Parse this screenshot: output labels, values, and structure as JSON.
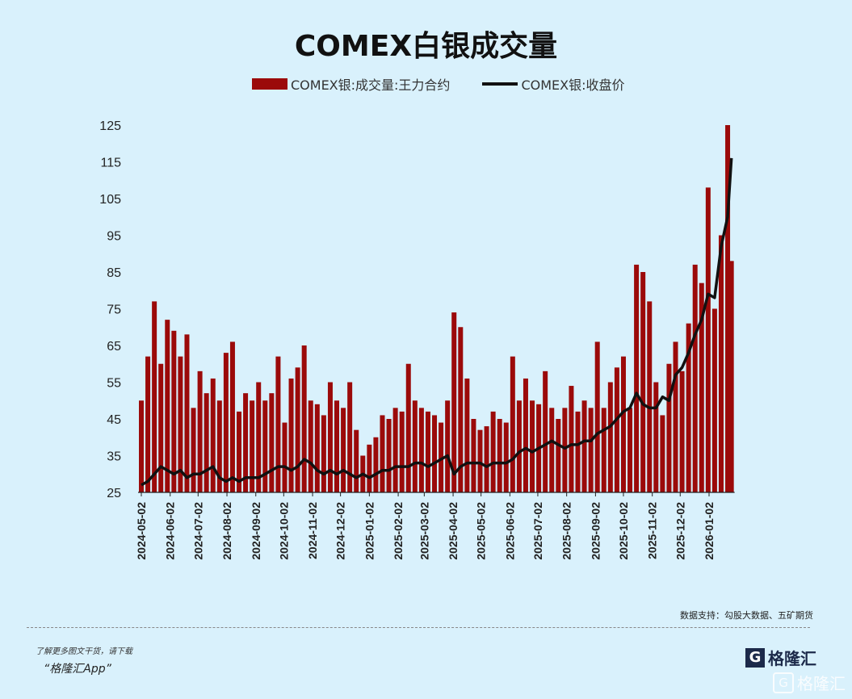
{
  "chart_data": {
    "type": "bar+line",
    "title": "COMEX白银成交量",
    "legend_placement": "top-center",
    "ylim": [
      25,
      125
    ],
    "yticks": [
      25,
      35,
      45,
      55,
      65,
      75,
      85,
      95,
      105,
      115,
      125
    ],
    "xticks": [
      "2024-05-02",
      "2024-06-02",
      "2024-07-02",
      "2024-08-02",
      "2024-09-02",
      "2024-10-02",
      "2024-11-02",
      "2024-12-02",
      "2025-01-02",
      "2025-02-02",
      "2025-03-02",
      "2025-04-02",
      "2025-05-02",
      "2025-06-02",
      "2025-07-02",
      "2025-08-02",
      "2025-09-02",
      "2025-10-02",
      "2025-11-02",
      "2025-12-02",
      "2026-01-02"
    ],
    "grid": false,
    "colors": {
      "bar": "#9b0a0a",
      "line": "#111111"
    },
    "dates": [
      "2024-05-02",
      "2024-05-09",
      "2024-05-16",
      "2024-05-23",
      "2024-05-30",
      "2024-06-06",
      "2024-06-13",
      "2024-06-20",
      "2024-06-27",
      "2024-07-04",
      "2024-07-11",
      "2024-07-18",
      "2024-07-25",
      "2024-08-01",
      "2024-08-08",
      "2024-08-15",
      "2024-08-22",
      "2024-08-29",
      "2024-09-05",
      "2024-09-12",
      "2024-09-19",
      "2024-09-26",
      "2024-10-03",
      "2024-10-10",
      "2024-10-17",
      "2024-10-24",
      "2024-10-31",
      "2024-11-07",
      "2024-11-14",
      "2024-11-21",
      "2024-11-28",
      "2024-12-05",
      "2024-12-12",
      "2024-12-19",
      "2024-12-26",
      "2025-01-02",
      "2025-01-09",
      "2025-01-16",
      "2025-01-23",
      "2025-01-30",
      "2025-02-06",
      "2025-02-13",
      "2025-02-20",
      "2025-02-27",
      "2025-03-06",
      "2025-03-13",
      "2025-03-20",
      "2025-03-27",
      "2025-04-03",
      "2025-04-10",
      "2025-04-17",
      "2025-04-24",
      "2025-05-01",
      "2025-05-08",
      "2025-05-15",
      "2025-05-22",
      "2025-05-29",
      "2025-06-05",
      "2025-06-12",
      "2025-06-19",
      "2025-06-26",
      "2025-07-03",
      "2025-07-10",
      "2025-07-17",
      "2025-07-24",
      "2025-07-31",
      "2025-08-07",
      "2025-08-14",
      "2025-08-21",
      "2025-08-28",
      "2025-09-04",
      "2025-09-11",
      "2025-09-18",
      "2025-09-25",
      "2025-10-02",
      "2025-10-09",
      "2025-10-16",
      "2025-10-23",
      "2025-10-30",
      "2025-11-06",
      "2025-11-13",
      "2025-11-20",
      "2025-11-27",
      "2025-12-04",
      "2025-12-11",
      "2025-12-18",
      "2025-12-25",
      "2026-01-01",
      "2026-01-08",
      "2026-01-15",
      "2026-01-22",
      "2026-01-26"
    ],
    "series": [
      {
        "name": "COMEX银:成交量:王力合约",
        "type": "bar",
        "values": [
          50,
          62,
          77,
          60,
          72,
          69,
          62,
          68,
          48,
          58,
          52,
          56,
          50,
          63,
          66,
          47,
          52,
          50,
          55,
          50,
          52,
          62,
          44,
          56,
          59,
          65,
          50,
          49,
          46,
          55,
          50,
          48,
          55,
          42,
          35,
          38,
          40,
          46,
          45,
          48,
          47,
          60,
          50,
          48,
          47,
          46,
          44,
          50,
          74,
          70,
          56,
          45,
          42,
          43,
          47,
          45,
          44,
          62,
          50,
          56,
          50,
          49,
          58,
          48,
          45,
          48,
          54,
          47,
          50,
          48,
          66,
          48,
          55,
          59,
          62,
          48,
          87,
          85,
          77,
          55,
          46,
          60,
          66,
          58,
          71,
          87,
          82,
          108,
          75,
          95,
          125,
          88
        ]
      },
      {
        "name": "COMEX银:收盘价",
        "type": "line",
        "values": [
          27,
          28,
          30,
          32,
          31,
          30,
          31,
          29,
          30,
          30,
          31,
          32,
          29,
          28,
          29,
          28,
          29,
          29,
          29,
          30,
          31,
          32,
          32,
          31,
          32,
          34,
          33,
          31,
          30,
          31,
          30,
          31,
          30,
          29,
          30,
          29,
          30,
          31,
          31,
          32,
          32,
          32,
          33,
          33,
          32,
          33,
          34,
          35,
          30,
          32,
          33,
          33,
          33,
          32,
          33,
          33,
          33,
          34,
          36,
          37,
          36,
          37,
          38,
          39,
          38,
          37,
          38,
          38,
          39,
          39,
          41,
          42,
          43,
          45,
          47,
          48,
          52,
          49,
          48,
          48,
          51,
          50,
          57,
          59,
          63,
          68,
          72,
          79,
          78,
          92,
          100,
          116
        ]
      }
    ]
  },
  "footer": {
    "source": "数据支持：勾股大数据、五矿期货",
    "promo_line1": "了解更多图文干货，请下载",
    "promo_line2": "“格隆汇App”",
    "logo": "格隆汇",
    "watermark": "格隆汇"
  }
}
